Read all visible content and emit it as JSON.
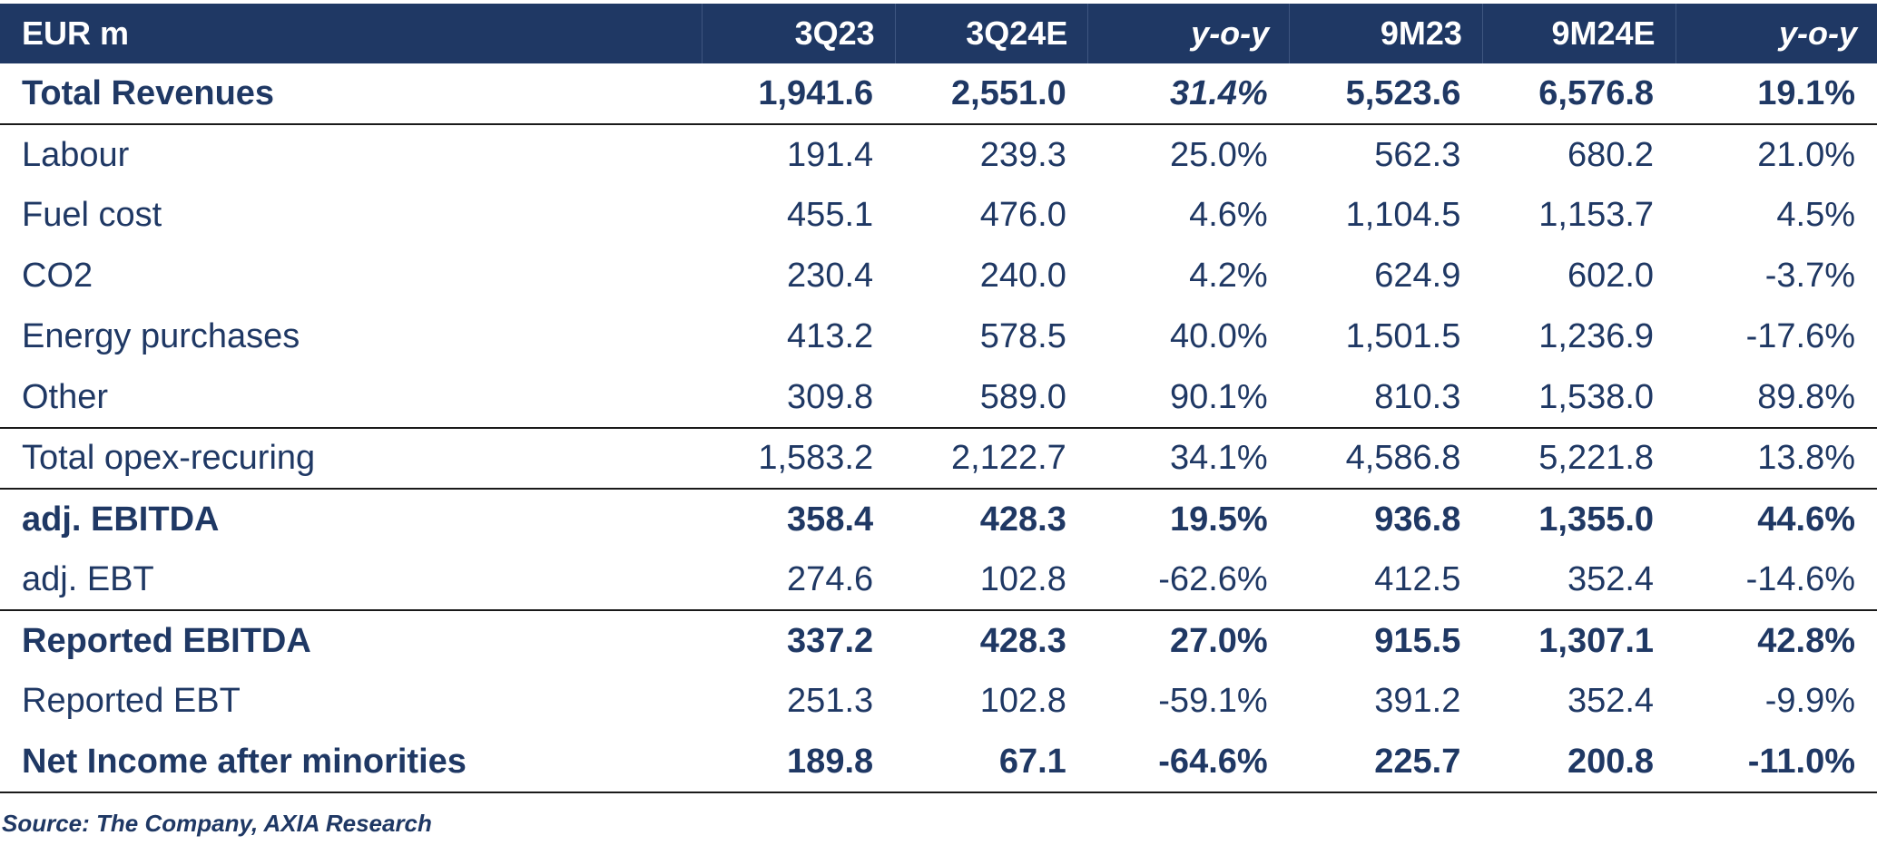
{
  "table": {
    "headers": [
      "EUR m",
      "3Q23",
      "3Q24E",
      "y-o-y",
      "9M23",
      "9M24E",
      "y-o-y"
    ],
    "rows": [
      {
        "label": "Total Revenues",
        "values": [
          "1,941.6",
          "2,551.0",
          "31.4%",
          "5,523.6",
          "6,576.8",
          "19.1%"
        ]
      },
      {
        "label": "Labour",
        "values": [
          "191.4",
          "239.3",
          "25.0%",
          "562.3",
          "680.2",
          "21.0%"
        ]
      },
      {
        "label": "Fuel cost",
        "values": [
          "455.1",
          "476.0",
          "4.6%",
          "1,104.5",
          "1,153.7",
          "4.5%"
        ]
      },
      {
        "label": "CO2",
        "values": [
          "230.4",
          "240.0",
          "4.2%",
          "624.9",
          "602.0",
          "-3.7%"
        ]
      },
      {
        "label": "Energy purchases",
        "values": [
          "413.2",
          "578.5",
          "40.0%",
          "1,501.5",
          "1,236.9",
          "-17.6%"
        ]
      },
      {
        "label": "Other",
        "values": [
          "309.8",
          "589.0",
          "90.1%",
          "810.3",
          "1,538.0",
          "89.8%"
        ]
      },
      {
        "label": "Total opex-recuring",
        "values": [
          "1,583.2",
          "2,122.7",
          "34.1%",
          "4,586.8",
          "5,221.8",
          "13.8%"
        ]
      },
      {
        "label": "adj. EBITDA",
        "values": [
          "358.4",
          "428.3",
          "19.5%",
          "936.8",
          "1,355.0",
          "44.6%"
        ]
      },
      {
        "label": "adj. EBT",
        "values": [
          "274.6",
          "102.8",
          "-62.6%",
          "412.5",
          "352.4",
          "-14.6%"
        ]
      },
      {
        "label": "Reported EBITDA",
        "values": [
          "337.2",
          "428.3",
          "27.0%",
          "915.5",
          "1,307.1",
          "42.8%"
        ]
      },
      {
        "label": "Reported EBT",
        "values": [
          "251.3",
          "102.8",
          "-59.1%",
          "391.2",
          "352.4",
          "-9.9%"
        ]
      },
      {
        "label": "Net Income after minorities",
        "values": [
          "189.8",
          "67.1",
          "-64.6%",
          "225.7",
          "200.8",
          "-11.0%"
        ]
      }
    ]
  },
  "source": "Source: The Company, AXIA Research",
  "colors": {
    "header_bg": "#1f3864",
    "text": "#1f3864",
    "rule": "#1a1a1a"
  }
}
